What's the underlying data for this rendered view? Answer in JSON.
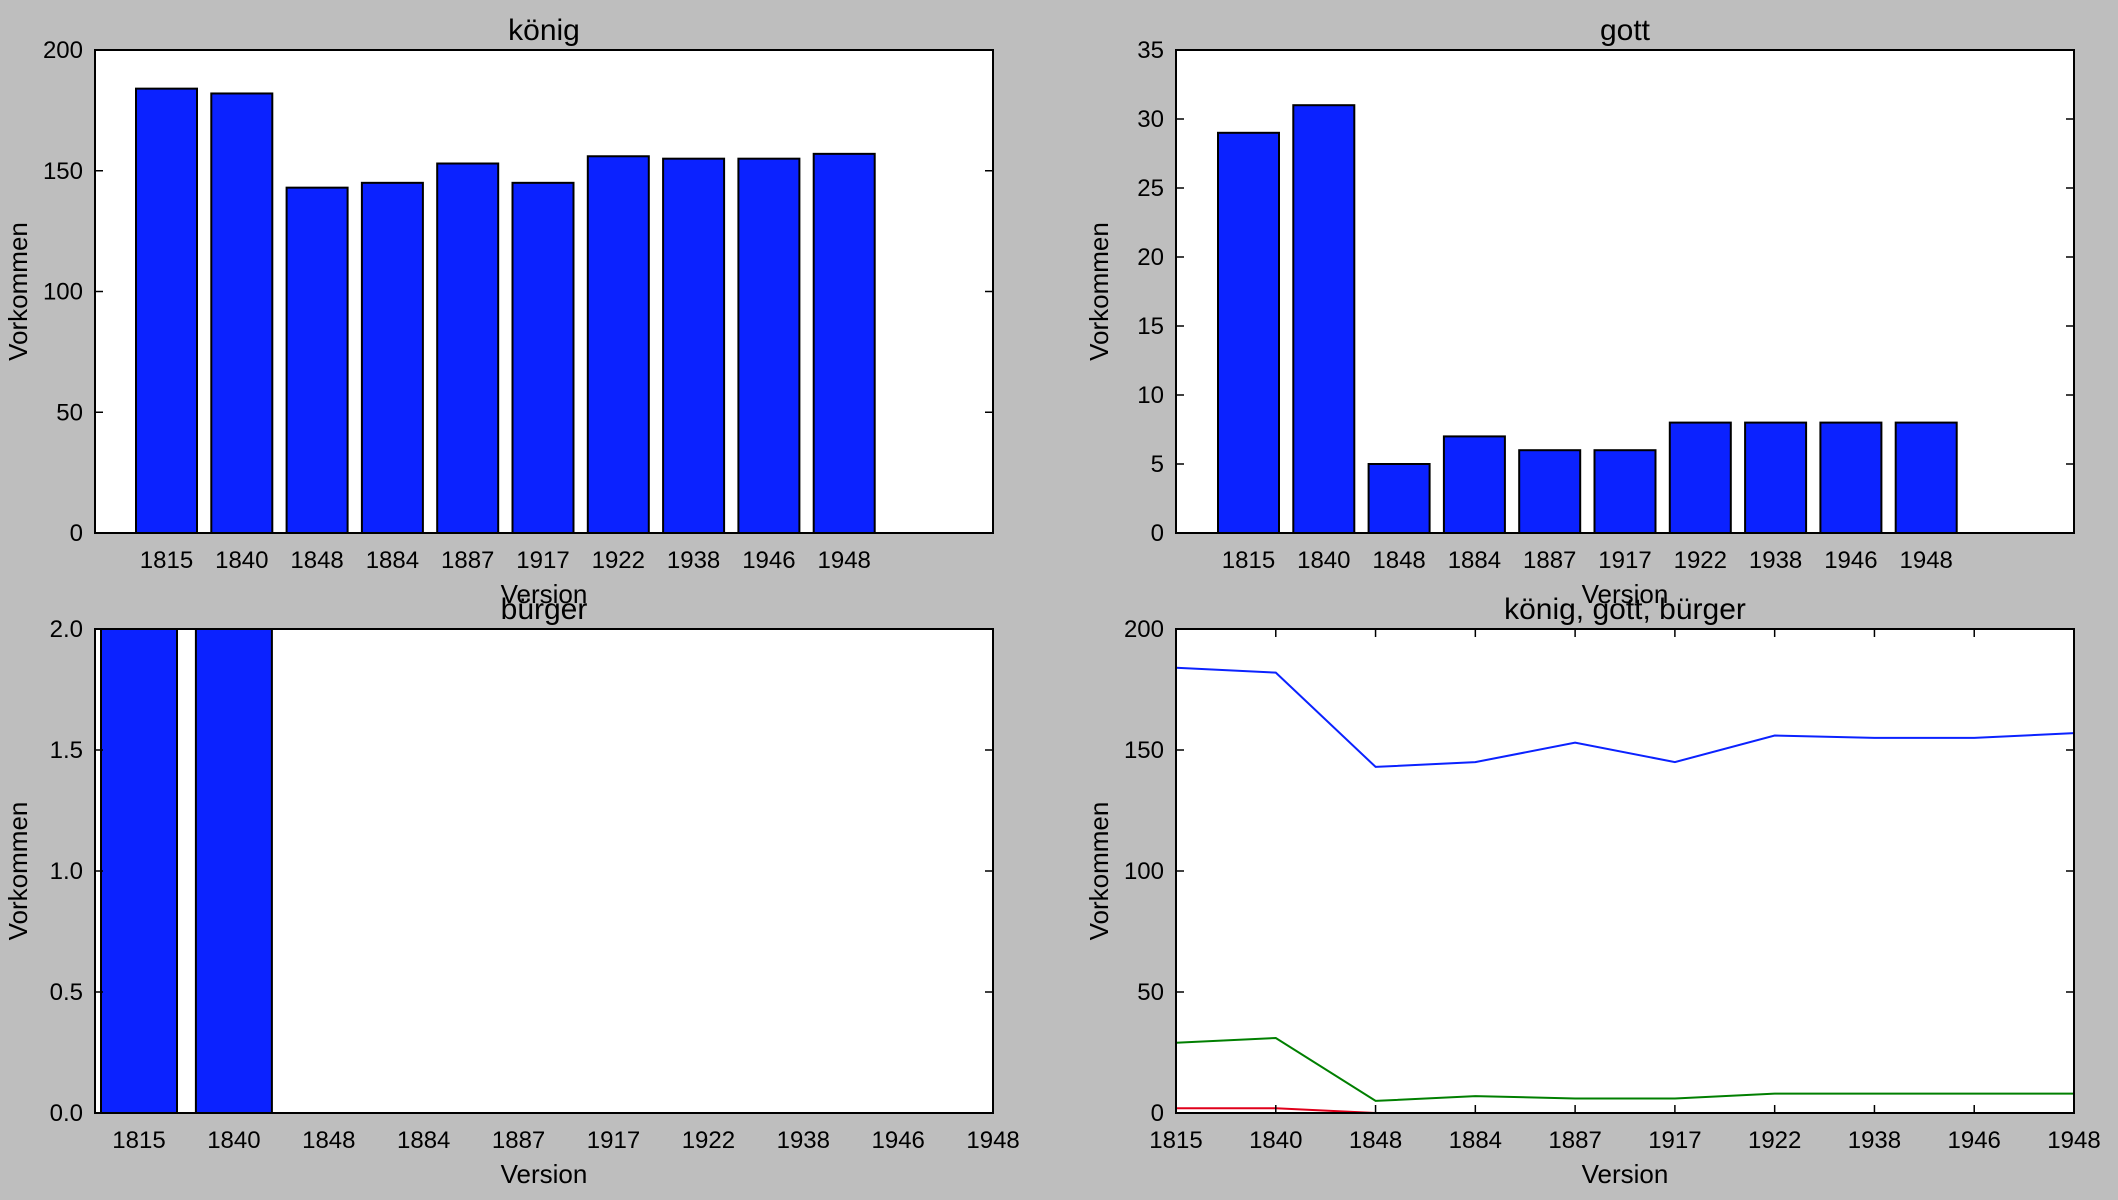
{
  "chart_data": [
    {
      "type": "bar",
      "title": "könig",
      "xlabel": "Version",
      "ylabel": "Vorkommen",
      "categories": [
        "1815",
        "1840",
        "1848",
        "1884",
        "1887",
        "1917",
        "1922",
        "1938",
        "1946",
        "1948"
      ],
      "values": [
        184,
        182,
        143,
        145,
        153,
        145,
        156,
        155,
        155,
        157
      ],
      "ylim": [
        0,
        200
      ],
      "yticks": [
        0,
        50,
        100,
        150,
        200
      ],
      "ytick_labels": [
        "0",
        "50",
        "100",
        "150",
        "200"
      ],
      "color": "#0b22ff",
      "grid": false
    },
    {
      "type": "bar",
      "title": "gott",
      "xlabel": "Version",
      "ylabel": "Vorkommen",
      "categories": [
        "1815",
        "1840",
        "1848",
        "1884",
        "1887",
        "1917",
        "1922",
        "1938",
        "1946",
        "1948"
      ],
      "values": [
        29,
        31,
        5,
        7,
        6,
        6,
        8,
        8,
        8,
        8
      ],
      "ylim": [
        0,
        35
      ],
      "yticks": [
        0,
        5,
        10,
        15,
        20,
        25,
        30,
        35
      ],
      "ytick_labels": [
        "0",
        "5",
        "10",
        "15",
        "20",
        "25",
        "30",
        "35"
      ],
      "color": "#0b22ff",
      "grid": false
    },
    {
      "type": "bar",
      "title": "bürger",
      "xlabel": "Version",
      "ylabel": "Vorkommen",
      "categories": [
        "1815",
        "1840",
        "1848",
        "1884",
        "1887",
        "1917",
        "1922",
        "1938",
        "1946",
        "1948"
      ],
      "values": [
        2,
        2,
        0,
        0,
        0,
        0,
        0,
        0,
        0,
        0
      ],
      "ylim": [
        0,
        2
      ],
      "yticks": [
        0,
        0.5,
        1,
        1.5,
        2
      ],
      "ytick_labels": [
        "0.0",
        "0.5",
        "1.0",
        "1.5",
        "2.0"
      ],
      "color": "#0b22ff",
      "grid": false
    },
    {
      "type": "line",
      "title": "könig, gott, bürger",
      "xlabel": "Version",
      "ylabel": "Vorkommen",
      "categories": [
        "1815",
        "1840",
        "1848",
        "1884",
        "1887",
        "1917",
        "1922",
        "1938",
        "1946",
        "1948"
      ],
      "ylim": [
        0,
        200
      ],
      "yticks": [
        0,
        50,
        100,
        150,
        200
      ],
      "ytick_labels": [
        "0",
        "50",
        "100",
        "150",
        "200"
      ],
      "series": [
        {
          "values": [
            184,
            182,
            143,
            145,
            153,
            145,
            156,
            155,
            155,
            157
          ],
          "color": "#0b22ff"
        },
        {
          "values": [
            29,
            31,
            5,
            7,
            6,
            6,
            8,
            8,
            8,
            8
          ],
          "color": "#007f00"
        },
        {
          "values": [
            2,
            2,
            0,
            0,
            0,
            0,
            0,
            0,
            0,
            0
          ],
          "color": "#e0001b"
        }
      ],
      "grid": false
    }
  ]
}
